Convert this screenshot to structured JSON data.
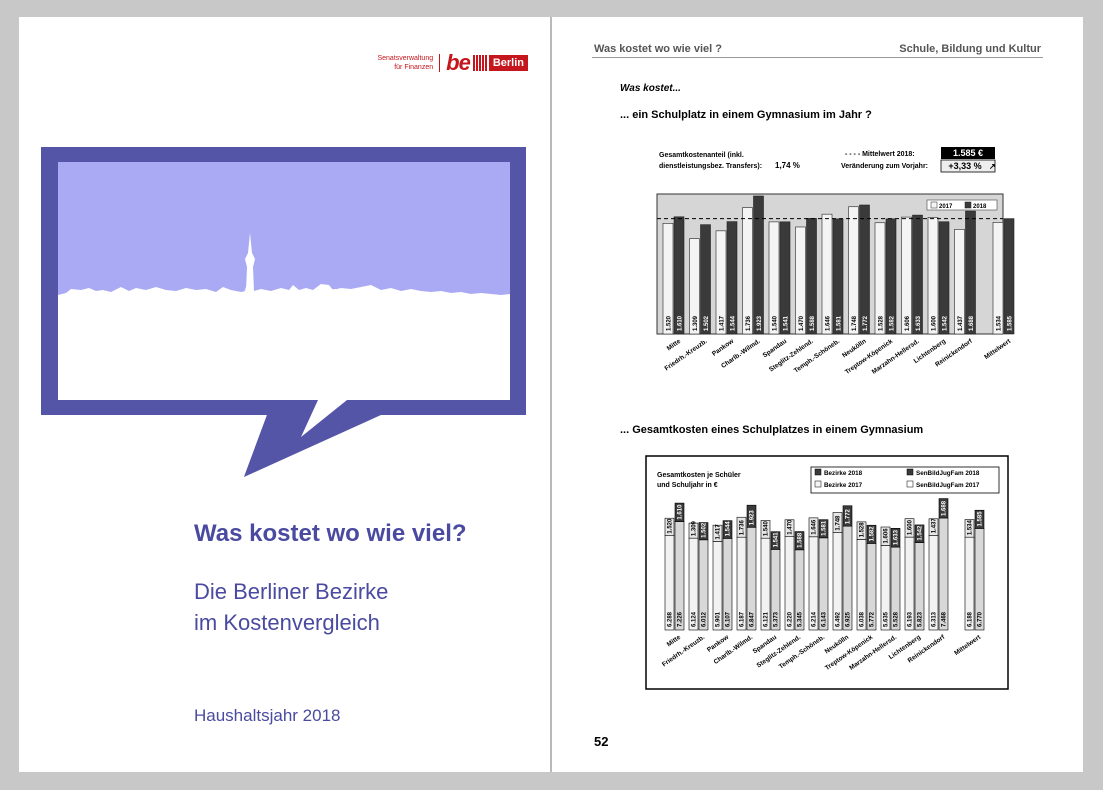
{
  "cover": {
    "logo_sen_line1": "Senatsverwaltung",
    "logo_sen_line2": "für Finanzen",
    "logo_be": "be",
    "logo_berlin": "Berlin",
    "title": "Was kostet wo wie viel?",
    "subtitle_line1": "Die Berliner Bezirke",
    "subtitle_line2": "im Kostenvergleich",
    "year": "Haushaltsjahr 2018"
  },
  "page": {
    "header_left": "Was kostet wo wie viel ?",
    "header_right": "Schule, Bildung und Kultur",
    "intro": "Was kostet...",
    "question1": "... ein Schulplatz in einem Gymnasium im Jahr ?",
    "question2": "... Gesamtkosten eines Schulplatzes in einem Gymnasium",
    "page_number": "52"
  },
  "chart1_info": {
    "share_label_line1": "Gesamtkostenanteil (inkl.",
    "share_label_line2": "dienstleistungsbez. Transfers):",
    "share_value": "1,74 %",
    "mean_label": "- - - -  Mittelwert 2018:",
    "mean_value": "1.585 €",
    "change_label": "Veränderung zum Vorjahr:",
    "change_value": "+3,33 %"
  },
  "chart2_info": {
    "caption_line1": "Gesamtkosten je Schüler",
    "caption_line2": "und Schuljahr in €"
  },
  "colors": {
    "accent": "#4a4aa0",
    "sky": "#a9aaf3",
    "bar_light": "#e8e8e8",
    "bar_dark": "#3a3a3a"
  },
  "chart_data": [
    {
      "type": "bar",
      "categories": [
        "Mitte",
        "Friedrh.-Kreuzb.",
        "Pankow",
        "Charlb.-Wilmd.",
        "Spandau",
        "Steglitz-Zehlend.",
        "Temph.-Schöneb.",
        "Neukölln",
        "Treptow-Köpenick",
        "Marzahn-Hellersd.",
        "Lichtenberg",
        "Reinickendorf",
        "Mittelwert"
      ],
      "series": [
        {
          "name": "2017",
          "values": [
            1520,
            1309,
            1417,
            1736,
            1540,
            1470,
            1646,
            1748,
            1528,
            1606,
            1600,
            1437,
            1534
          ]
        },
        {
          "name": "2018",
          "values": [
            1610,
            1502,
            1544,
            1923,
            1541,
            1588,
            1581,
            1772,
            1582,
            1633,
            1542,
            1688,
            1585
          ]
        }
      ],
      "ylim": [
        0,
        2500
      ],
      "mean_line": 1585,
      "legend": "top-right"
    },
    {
      "type": "bar",
      "categories": [
        "Mitte",
        "Friedrh.-Kreuzb.",
        "Pankow",
        "Charlb.-Wilmd.",
        "Spandau",
        "Steglitz-Zehlend.",
        "Temph.-Schöneb.",
        "Neukölln",
        "Treptow-Köpenick",
        "Marzahn-Hellersd.",
        "Lichtenberg",
        "Reinickendorf",
        "Mittelwert"
      ],
      "series": [
        {
          "name": "Bezirke 2018",
          "values": [
            1610,
            1502,
            1544,
            1923,
            1541,
            1588,
            1581,
            1772,
            1582,
            1633,
            1542,
            1688,
            1585
          ]
        },
        {
          "name": "Bezirke 2017",
          "values": [
            1520,
            1309,
            1417,
            1736,
            1540,
            1470,
            1646,
            1748,
            1528,
            1606,
            1600,
            1437,
            1534
          ]
        },
        {
          "name": "SenBildJugFam 2018",
          "values": [
            7226,
            6012,
            6107,
            6847,
            5373,
            5345,
            6143,
            6925,
            5772,
            5528,
            5823,
            7468,
            6770
          ]
        },
        {
          "name": "SenBildJugFam 2017",
          "values": [
            6288,
            6124,
            5901,
            6187,
            6121,
            6220,
            6214,
            6492,
            6038,
            5635,
            6193,
            6313,
            6188
          ]
        }
      ],
      "legend": "top-right"
    }
  ]
}
